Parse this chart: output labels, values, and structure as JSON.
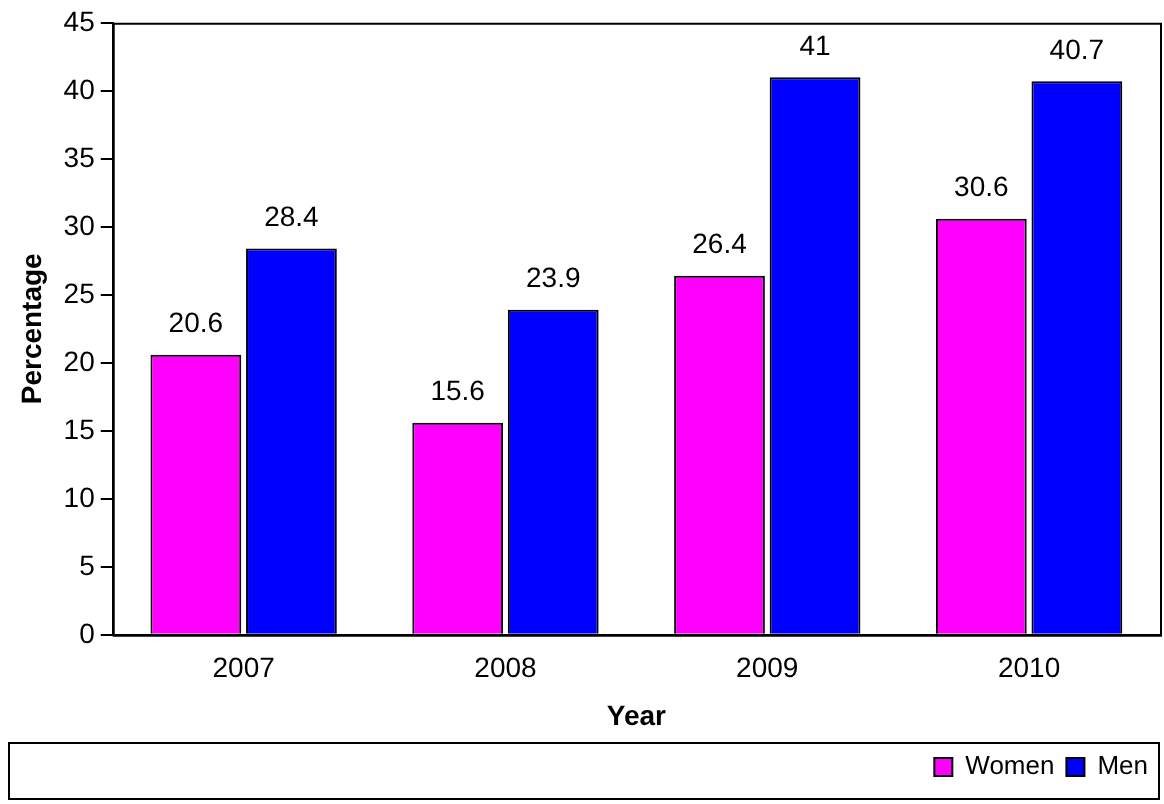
{
  "chart_data": {
    "type": "bar",
    "xlabel": "Year",
    "ylabel": "Percentage",
    "categories": [
      "2007",
      "2008",
      "2009",
      "2010"
    ],
    "series": [
      {
        "name": "Women",
        "color": "#ff00ff",
        "values": [
          20.6,
          15.6,
          26.4,
          30.6
        ]
      },
      {
        "name": "Men",
        "color": "#0000ff",
        "values": [
          28.4,
          23.9,
          41,
          40.7
        ]
      }
    ],
    "ylim": [
      0,
      45
    ],
    "yticks": [
      0,
      5,
      10,
      15,
      20,
      25,
      30,
      35,
      40,
      45
    ],
    "grid": false,
    "legend": "bottom right",
    "data_labels": true
  }
}
